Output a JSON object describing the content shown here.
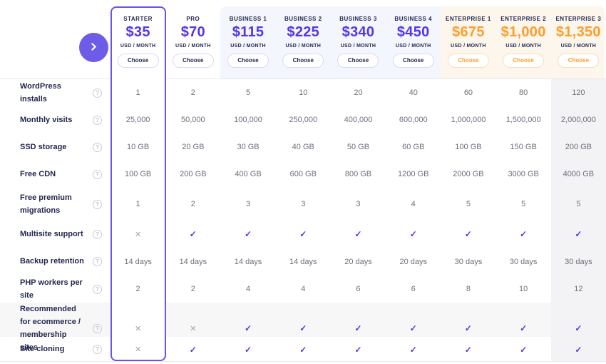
{
  "theme": {
    "accent_purple": "#5335ee",
    "accent_orange": "#ff9d2b",
    "navy_text": "#23284f",
    "value_text": "#6b6f7b",
    "business_header_bg": "#f3f6fc",
    "enterprise_header_bg": "#fdf6ec",
    "starter_outline": "#6d51eb",
    "shaded_row_bg": "#f7f7f8",
    "highlight_column_bg": "#f3f3f5"
  },
  "icons": {
    "check": "✓",
    "cross": "✕",
    "help": "?",
    "chevron_right": "›"
  },
  "plans": [
    {
      "name": "STARTER",
      "price": "$35",
      "period": "USD / MONTH",
      "button": "Choose",
      "tier": "starter"
    },
    {
      "name": "PRO",
      "price": "$70",
      "period": "USD / MONTH",
      "button": "Choose",
      "tier": "standard"
    },
    {
      "name": "BUSINESS 1",
      "price": "$115",
      "period": "USD / MONTH",
      "button": "Choose",
      "tier": "business"
    },
    {
      "name": "BUSINESS 2",
      "price": "$225",
      "period": "USD / MONTH",
      "button": "Choose",
      "tier": "business"
    },
    {
      "name": "BUSINESS 3",
      "price": "$340",
      "period": "USD / MONTH",
      "button": "Choose",
      "tier": "business"
    },
    {
      "name": "BUSINESS 4",
      "price": "$450",
      "period": "USD / MONTH",
      "button": "Choose",
      "tier": "business"
    },
    {
      "name": "ENTERPRISE 1",
      "price": "$675",
      "period": "USD / MONTH",
      "button": "Choose",
      "tier": "enterprise"
    },
    {
      "name": "ENTERPRISE 2",
      "price": "$1,000",
      "period": "USD / MONTH",
      "button": "Choose",
      "tier": "enterprise"
    },
    {
      "name": "ENTERPRISE 3",
      "price": "$1,350",
      "period": "USD / MONTH",
      "button": "Choose",
      "tier": "enterprise"
    }
  ],
  "features": [
    {
      "label": "WordPress installs",
      "values": [
        "1",
        "2",
        "5",
        "10",
        "20",
        "40",
        "60",
        "80",
        "120"
      ]
    },
    {
      "label": "Monthly visits",
      "values": [
        "25,000",
        "50,000",
        "100,000",
        "250,000",
        "400,000",
        "600,000",
        "1,000,000",
        "1,500,000",
        "2,000,000"
      ]
    },
    {
      "label": "SSD storage",
      "values": [
        "10 GB",
        "20 GB",
        "30 GB",
        "40 GB",
        "50 GB",
        "60 GB",
        "100 GB",
        "150 GB",
        "200 GB"
      ]
    },
    {
      "label": "Free CDN",
      "values": [
        "100 GB",
        "200 GB",
        "400 GB",
        "600 GB",
        "800 GB",
        "1200 GB",
        "2000 GB",
        "3000 GB",
        "4000 GB"
      ]
    },
    {
      "label": "Free premium migrations",
      "values": [
        "1",
        "2",
        "3",
        "3",
        "3",
        "4",
        "5",
        "5",
        "5"
      ]
    },
    {
      "label": "Multisite support",
      "values": [
        "cross",
        "check",
        "check",
        "check",
        "check",
        "check",
        "check",
        "check",
        "check"
      ]
    },
    {
      "label": "Backup retention",
      "values": [
        "14 days",
        "14 days",
        "14 days",
        "14 days",
        "20 days",
        "20 days",
        "30 days",
        "30 days",
        "30 days"
      ]
    },
    {
      "label": "PHP workers per site",
      "values": [
        "2",
        "2",
        "4",
        "4",
        "6",
        "6",
        "8",
        "10",
        "12"
      ]
    },
    {
      "label": "Recommended for ecommerce / membership sites",
      "values": [
        "cross",
        "cross",
        "check",
        "check",
        "check",
        "check",
        "check",
        "check",
        "check"
      ]
    },
    {
      "label": "Site cloning",
      "values": [
        "cross",
        "check",
        "check",
        "check",
        "check",
        "check",
        "check",
        "check",
        "check"
      ]
    }
  ]
}
